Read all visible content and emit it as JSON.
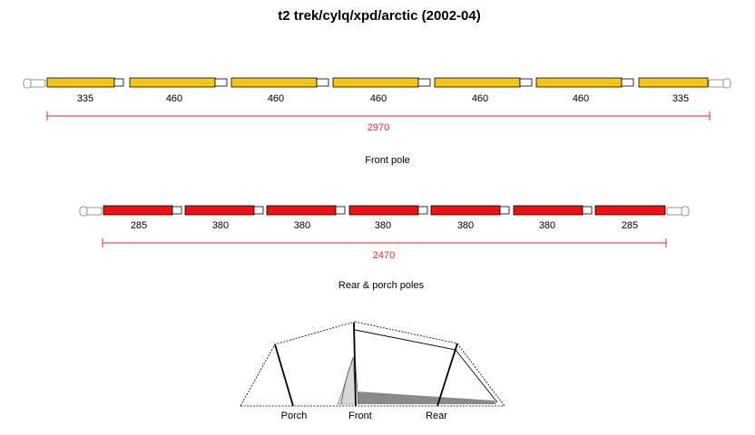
{
  "title": "t2 trek/cylq/xpd/arctic (2002-04)",
  "front_pole": {
    "caption": "Front pole",
    "color": "#f5c518",
    "segments": [
      "335",
      "460",
      "460",
      "460",
      "460",
      "460",
      "335"
    ],
    "total": "2970"
  },
  "rear_porch_poles": {
    "caption": "Rear & porch poles",
    "color": "#ee1111",
    "segments": [
      "285",
      "380",
      "380",
      "380",
      "380",
      "380",
      "285"
    ],
    "total": "2470"
  },
  "tent_labels": {
    "porch": "Porch",
    "front": "Front",
    "rear": "Rear"
  },
  "colors": {
    "dimension_line": "#e8262a",
    "groundsheet": "#8a8a8a",
    "door_panel": "#d8d8d8"
  }
}
